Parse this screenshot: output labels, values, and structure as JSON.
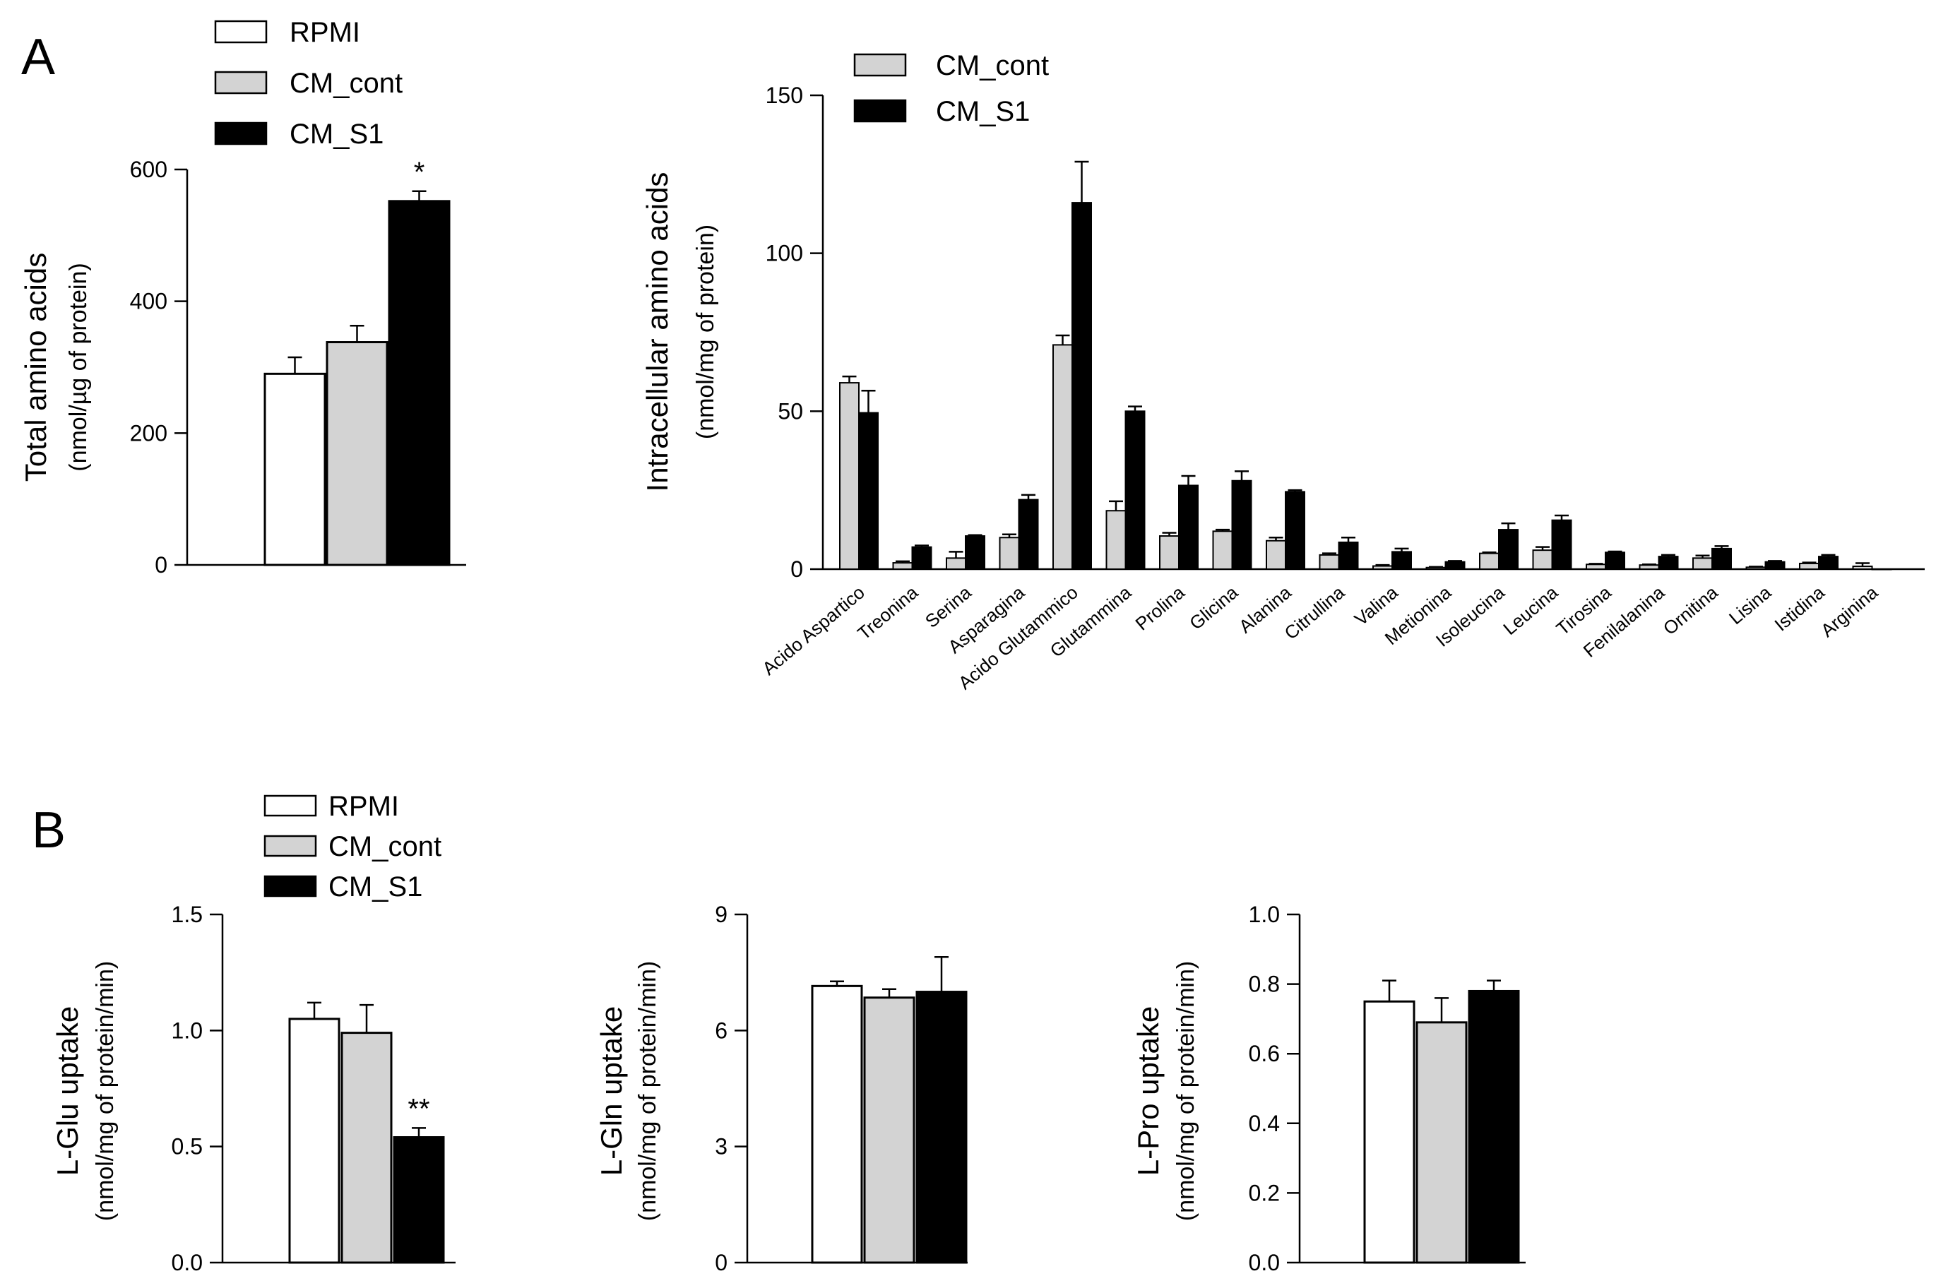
{
  "panels": {
    "a": "A",
    "b": "B"
  },
  "colors": {
    "RPMI": "#ffffff",
    "CM_cont": "#d3d3d3",
    "CM_S1": "#000000"
  },
  "chart_data": [
    {
      "id": "total",
      "type": "bar",
      "title": "",
      "ylabel": "Total amino acids",
      "ylabel2": "(nmol/µg of protein)",
      "ylim": [
        0,
        600
      ],
      "yticks": [
        0,
        200,
        400,
        600
      ],
      "ytick_labels": [
        "0",
        "200",
        "400",
        "600"
      ],
      "legend": [
        "RPMI",
        "CM_cont",
        "CM_S1"
      ],
      "series": [
        {
          "name": "RPMI",
          "values": [
            290
          ],
          "errors": [
            25
          ]
        },
        {
          "name": "CM_cont",
          "values": [
            338
          ],
          "errors": [
            25
          ]
        },
        {
          "name": "CM_S1",
          "values": [
            552
          ],
          "errors": [
            15
          ]
        }
      ],
      "annotations": [
        {
          "series": "CM_S1",
          "text": "*"
        }
      ]
    },
    {
      "id": "intracellular",
      "type": "bar",
      "title": "",
      "ylabel": "Intracellular amino acids",
      "ylabel2": "(nmol/mg of protein)",
      "ylim": [
        0,
        150
      ],
      "yticks": [
        0,
        50,
        100,
        150
      ],
      "ytick_labels": [
        "0",
        "50",
        "100",
        "150"
      ],
      "legend": [
        "CM_cont",
        "CM_S1"
      ],
      "categories": [
        "Acido Aspartico",
        "Treonina",
        "Serina",
        "Asparagina",
        "Acido Glutammico",
        "Glutammina",
        "Prolina",
        "Glicina",
        "Alanina",
        "Citrullina",
        "Valina",
        "Metionina",
        "Isoleucina",
        "Leucina",
        "Tirosina",
        "Fenilalanina",
        "Ornitina",
        "Lisina",
        "Istidina",
        "Arginina"
      ],
      "series": [
        {
          "name": "CM_cont",
          "values": [
            59,
            2,
            3.5,
            10,
            71,
            18.5,
            10.5,
            12,
            9,
            4.5,
            1,
            0.5,
            5,
            6,
            1.5,
            1.3,
            3.5,
            0.6,
            1.8,
            0.9
          ],
          "errors": [
            2,
            0.5,
            2,
            1,
            3,
            3,
            1,
            0.5,
            1,
            0.5,
            0.3,
            0.2,
            0.3,
            1,
            0.2,
            0.2,
            0.8,
            0.2,
            0.3,
            1
          ]
        },
        {
          "name": "CM_S1",
          "values": [
            49.5,
            7,
            10.5,
            22,
            116,
            50,
            26.5,
            28,
            24.5,
            8.5,
            5.5,
            2.3,
            12.5,
            15.5,
            5.3,
            4,
            6.5,
            2.3,
            4,
            0
          ]
        },
        {
          "name": "CM_S1_errors",
          "values": [
            7,
            0.5,
            0.3,
            1.5,
            13,
            1.5,
            3,
            3,
            0.5,
            1.5,
            1,
            0.3,
            2,
            1.5,
            0.3,
            0.5,
            0.8,
            0.3,
            0.5,
            0
          ]
        }
      ]
    },
    {
      "id": "glu",
      "type": "bar",
      "title": "",
      "ylabel": "L-Glu uptake",
      "ylabel2": "(nmol/mg of protein/min)",
      "ylim": [
        0,
        1.5
      ],
      "yticks": [
        0,
        0.5,
        1.0,
        1.5
      ],
      "ytick_labels": [
        "0.0",
        "0.5",
        "1.0",
        "1.5"
      ],
      "legend": [
        "RPMI",
        "CM_cont",
        "CM_S1"
      ],
      "series": [
        {
          "name": "RPMI",
          "values": [
            1.05
          ],
          "errors": [
            0.07
          ]
        },
        {
          "name": "CM_cont",
          "values": [
            0.99
          ],
          "errors": [
            0.12
          ]
        },
        {
          "name": "CM_S1",
          "values": [
            0.54
          ],
          "errors": [
            0.04
          ]
        }
      ],
      "annotations": [
        {
          "series": "CM_S1",
          "text": "**"
        }
      ]
    },
    {
      "id": "gln",
      "type": "bar",
      "title": "",
      "ylabel": "L-Gln uptake",
      "ylabel2": "(nmol/mg of protein/min)",
      "ylim": [
        0,
        9
      ],
      "yticks": [
        0,
        3,
        6,
        9
      ],
      "ytick_labels": [
        "0",
        "3",
        "6",
        "9"
      ],
      "series": [
        {
          "name": "RPMI",
          "values": [
            7.15
          ],
          "errors": [
            0.12
          ]
        },
        {
          "name": "CM_cont",
          "values": [
            6.85
          ],
          "errors": [
            0.22
          ]
        },
        {
          "name": "CM_S1",
          "values": [
            7.0
          ],
          "errors": [
            0.9
          ]
        }
      ]
    },
    {
      "id": "pro",
      "type": "bar",
      "title": "",
      "ylabel": "L-Pro uptake",
      "ylabel2": "(nmol/mg of protein/min)",
      "ylim": [
        0,
        1.0
      ],
      "yticks": [
        0,
        0.2,
        0.4,
        0.6,
        0.8,
        1.0
      ],
      "ytick_labels": [
        "0.0",
        "0.2",
        "0.4",
        "0.6",
        "0.8",
        "1.0"
      ],
      "series": [
        {
          "name": "RPMI",
          "values": [
            0.75
          ],
          "errors": [
            0.06
          ]
        },
        {
          "name": "CM_cont",
          "values": [
            0.69
          ],
          "errors": [
            0.07
          ]
        },
        {
          "name": "CM_S1",
          "values": [
            0.78
          ],
          "errors": [
            0.03
          ]
        }
      ]
    }
  ]
}
